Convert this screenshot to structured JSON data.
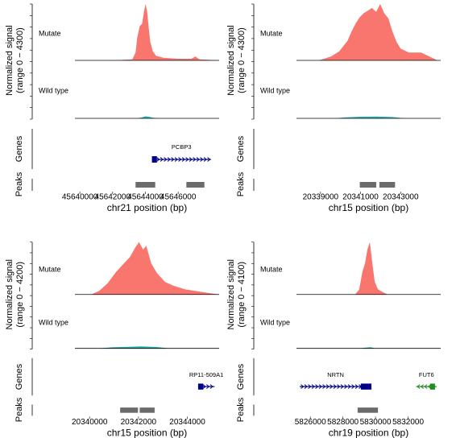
{
  "chart_data": [
    {
      "type": "genome-tracks",
      "ylabel": [
        "Normalized signal",
        "(range 0 − 4300)"
      ],
      "ylim": [
        0,
        4300
      ],
      "xlabel": "chr21 position (bp)",
      "xlim": [
        45639700,
        45648500
      ],
      "xticks": [
        45640000,
        45642000,
        45644000,
        45646000
      ],
      "series": [
        {
          "name": "Mutate",
          "color": "#f8766d",
          "x": [
            45639700,
            45642000,
            45643200,
            45643400,
            45643500,
            45643650,
            45643800,
            45643900,
            45644000,
            45644100,
            45644200,
            45644300,
            45644450,
            45644650,
            45645100,
            45646000,
            45646800,
            45647050,
            45647300,
            45648500
          ],
          "values": [
            0,
            0,
            80,
            600,
            1700,
            2600,
            2800,
            3600,
            4300,
            3800,
            2500,
            1400,
            700,
            350,
            200,
            120,
            120,
            300,
            80,
            0
          ]
        },
        {
          "name": "Wild type",
          "color": "#1fb0b4",
          "x": [
            45639700,
            45643500,
            45643800,
            45644000,
            45644200,
            45644400,
            45644800,
            45648500
          ],
          "values": [
            0,
            0,
            80,
            150,
            120,
            60,
            0,
            0
          ]
        }
      ],
      "genes_label": "Genes",
      "peaks_label": "Peaks",
      "genes": [
        {
          "name": "PCBP3",
          "start": 45644400,
          "end": 45648000,
          "thick_start": 45644400,
          "thick_end": 45644700,
          "strand": "+",
          "color": "#00008b"
        }
      ],
      "peaks": [
        {
          "start": 45643400,
          "end": 45644600
        },
        {
          "start": 45646500,
          "end": 45647600
        }
      ]
    },
    {
      "type": "genome-tracks",
      "ylabel": [
        "Normalized signal",
        "(range 0 − 4300)"
      ],
      "ylim": [
        0,
        4300
      ],
      "xlabel": "chr15 position (bp)",
      "xlim": [
        20337800,
        20345000
      ],
      "xticks": [
        20339000,
        20341000,
        20343000
      ],
      "series": [
        {
          "name": "Mutate",
          "color": "#f8766d",
          "x": [
            20337800,
            20338920,
            20339530,
            20339940,
            20340350,
            20340550,
            20340750,
            20340960,
            20341160,
            20341370,
            20341570,
            20341780,
            20341980,
            20342180,
            20342390,
            20342590,
            20342800,
            20343000,
            20343410,
            20344020,
            20344430,
            20344840,
            20345000
          ],
          "values": [
            0,
            0,
            300,
            700,
            1500,
            2200,
            2800,
            3300,
            3600,
            3800,
            4000,
            3700,
            4300,
            3600,
            3200,
            2200,
            1400,
            900,
            600,
            600,
            300,
            0,
            0
          ]
        },
        {
          "name": "Wild type",
          "color": "#1fb0b4",
          "x": [
            20337800,
            20339700,
            20340200,
            20341000,
            20341800,
            20342600,
            20343200,
            20345000
          ],
          "values": [
            0,
            0,
            70,
            120,
            140,
            100,
            0,
            0
          ]
        }
      ],
      "genes_label": "Genes",
      "peaks_label": "Peaks",
      "genes": [],
      "peaks": [
        {
          "start": 20340960,
          "end": 20341780
        },
        {
          "start": 20341940,
          "end": 20342720
        }
      ]
    },
    {
      "type": "genome-tracks",
      "ylabel": [
        "Normalized signal",
        "(range 0 − 4200)"
      ],
      "ylim": [
        0,
        4200
      ],
      "xlabel": "chr15 position (bp)",
      "xlim": [
        20339400,
        20345300
      ],
      "xticks": [
        20340000,
        20342000,
        20344000
      ],
      "series": [
        {
          "name": "Mutate",
          "color": "#f8766d",
          "x": [
            20339400,
            20340070,
            20340400,
            20340740,
            20341080,
            20341410,
            20341650,
            20341850,
            20342020,
            20342190,
            20342320,
            20342520,
            20342760,
            20343090,
            20343430,
            20343930,
            20344440,
            20344940,
            20345300
          ],
          "values": [
            0,
            0,
            300,
            900,
            1800,
            2500,
            3000,
            3700,
            4200,
            3600,
            3900,
            2500,
            1700,
            1000,
            700,
            400,
            250,
            100,
            0
          ]
        },
        {
          "name": "Wild type",
          "color": "#1fb0b4",
          "x": [
            20339400,
            20340400,
            20340900,
            20341600,
            20342100,
            20342700,
            20343300,
            20345300
          ],
          "values": [
            0,
            0,
            90,
            130,
            160,
            120,
            0,
            0
          ]
        }
      ],
      "genes_label": "Genes",
      "peaks_label": "Peaks",
      "genes": [
        {
          "name": "RP11-509A1",
          "start": 20344440,
          "end": 20345110,
          "thick_start": 20344440,
          "thick_end": 20344650,
          "strand": "+",
          "color": "#00008b"
        }
      ],
      "peaks": [
        {
          "start": 20341250,
          "end": 20341980
        },
        {
          "start": 20342050,
          "end": 20342660
        }
      ]
    },
    {
      "type": "genome-tracks",
      "ylabel": [
        "Normalized signal",
        "(range 0 − 4100)"
      ],
      "ylim": [
        0,
        4100
      ],
      "xlabel": "chr19 position (bp)",
      "xlim": [
        5825150,
        5834000
      ],
      "xticks": [
        5826000,
        5828000,
        5830000,
        5832000
      ],
      "series": [
        {
          "name": "Mutate",
          "color": "#f8766d",
          "x": [
            5825150,
            5828750,
            5829000,
            5829200,
            5829350,
            5829500,
            5829650,
            5829800,
            5829950,
            5830150,
            5830500,
            5830750,
            5834000
          ],
          "values": [
            0,
            0,
            400,
            1800,
            2400,
            3500,
            4100,
            2500,
            1000,
            400,
            150,
            0,
            0
          ]
        },
        {
          "name": "Wild type",
          "color": "#1fb0b4",
          "x": [
            5825150,
            5829000,
            5829400,
            5829700,
            5830000,
            5834000
          ],
          "values": [
            0,
            0,
            60,
            90,
            0,
            0
          ]
        }
      ],
      "genes_label": "Genes",
      "peaks_label": "Peaks",
      "genes": [
        {
          "name": "NRTN",
          "start": 5825350,
          "end": 5829750,
          "thick_start": 5829100,
          "thick_end": 5829750,
          "strand": "+",
          "color": "#00008b"
        },
        {
          "name": "FUT6",
          "start": 5832500,
          "end": 5833750,
          "thick_start": 5833350,
          "thick_end": 5833650,
          "strand": "-",
          "color": "#228b22"
        }
      ],
      "peaks": [
        {
          "start": 5828900,
          "end": 5830150
        }
      ]
    }
  ]
}
